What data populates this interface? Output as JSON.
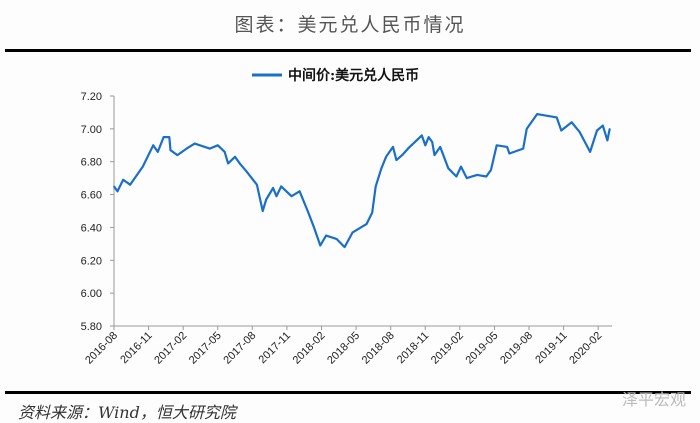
{
  "header": {
    "title": "图表：美元兑人民币情况"
  },
  "footer": {
    "source": "资料来源：Wind，恒大研究院",
    "watermark": "泽平宏观"
  },
  "chart_data": {
    "type": "line",
    "title": "",
    "legend": {
      "position": "top-center",
      "entries": [
        "中间价:美元兑人民币"
      ]
    },
    "xlabel": "",
    "ylabel": "",
    "x_unit": "months since 2016-08",
    "xlim": [
      0,
      43.2
    ],
    "ylim": [
      5.8,
      7.2
    ],
    "y_ticks": [
      "7.20",
      "7.00",
      "6.80",
      "6.60",
      "6.40",
      "6.20",
      "6.00",
      "5.80"
    ],
    "y_tick_values": [
      7.2,
      7.0,
      6.8,
      6.6,
      6.4,
      6.2,
      6.0,
      5.8
    ],
    "x_ticks": [
      "2016-08",
      "2016-11",
      "2017-02",
      "2017-05",
      "2017-08",
      "2017-11",
      "2018-02",
      "2018-05",
      "2018-08",
      "2018-11",
      "2019-02",
      "2019-05",
      "2019-08",
      "2019-11",
      "2020-02"
    ],
    "x_tick_values": [
      0,
      3,
      6,
      9,
      12,
      15,
      18,
      21,
      24,
      27,
      30,
      33,
      36,
      39,
      42
    ],
    "grid": false,
    "color": "#1a6fcc",
    "series": [
      {
        "name": "中间价:美元兑人民币",
        "x": [
          0,
          0.3,
          0.8,
          1.4,
          2.5,
          3.4,
          3.8,
          4.3,
          4.8,
          4.9,
          5.5,
          6.3,
          7.0,
          8.3,
          9.0,
          9.6,
          9.9,
          10.5,
          10.9,
          11.5,
          12.4,
          12.9,
          13.2,
          13.8,
          14.1,
          14.5,
          15.4,
          16.1,
          16.8,
          17.3,
          17.9,
          18.4,
          19.3,
          20.0,
          20.7,
          21.9,
          22.4,
          22.7,
          23.2,
          23.6,
          24.2,
          24.5,
          25.0,
          25.5,
          26.7,
          27.0,
          27.3,
          27.6,
          27.8,
          28.3,
          29.0,
          29.7,
          30.1,
          30.6,
          31.5,
          32.3,
          32.7,
          33.2,
          34.1,
          34.3,
          35.5,
          35.8,
          36.7,
          38.4,
          38.8,
          39.7,
          40.4,
          41.3,
          41.9,
          42.4,
          42.8,
          43.0
        ],
        "values": [
          6.65,
          6.62,
          6.69,
          6.66,
          6.77,
          6.9,
          6.86,
          6.95,
          6.95,
          6.87,
          6.84,
          6.88,
          6.91,
          6.88,
          6.9,
          6.86,
          6.79,
          6.83,
          6.79,
          6.74,
          6.66,
          6.5,
          6.57,
          6.64,
          6.59,
          6.65,
          6.59,
          6.62,
          6.5,
          6.41,
          6.29,
          6.35,
          6.33,
          6.28,
          6.37,
          6.42,
          6.49,
          6.65,
          6.76,
          6.83,
          6.89,
          6.81,
          6.84,
          6.88,
          6.96,
          6.9,
          6.95,
          6.92,
          6.84,
          6.89,
          6.76,
          6.71,
          6.77,
          6.7,
          6.72,
          6.71,
          6.75,
          6.9,
          6.89,
          6.85,
          6.88,
          7.0,
          7.09,
          7.07,
          6.99,
          7.04,
          6.98,
          6.86,
          6.99,
          7.02,
          6.93,
          7.0
        ]
      }
    ]
  }
}
